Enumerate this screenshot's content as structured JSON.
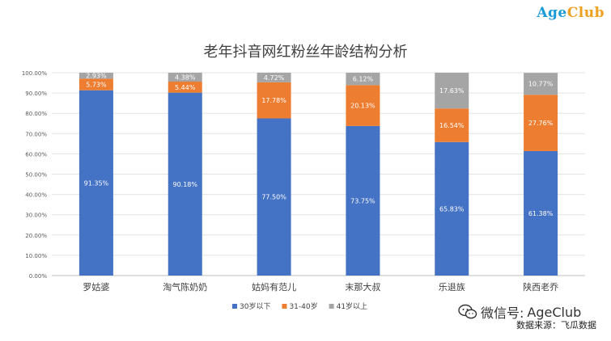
{
  "brand": {
    "part1": "Age",
    "part2": "Club"
  },
  "watermark": {
    "prefix": "微信号: ",
    "account": "AgeClub"
  },
  "source_note": "数据来源：飞瓜数据",
  "colors": {
    "series1": "#4472c4",
    "series2": "#ed7d31",
    "series3": "#a5a5a5"
  },
  "chart_data": {
    "type": "bar",
    "stacked": true,
    "title": "老年抖音网红粉丝年龄结构分析",
    "xlabel": "",
    "ylabel": "",
    "ylim": [
      0,
      100
    ],
    "yticks": [
      "0.00%",
      "10.00%",
      "20.00%",
      "30.00%",
      "40.00%",
      "50.00%",
      "60.00%",
      "70.00%",
      "80.00%",
      "90.00%",
      "100.00%"
    ],
    "categories": [
      "罗姑婆",
      "淘气陈奶奶",
      "姑妈有范儿",
      "末那大叔",
      "乐退族",
      "陕西老乔"
    ],
    "series": [
      {
        "name": "30岁以下",
        "values": [
          91.35,
          90.18,
          77.5,
          73.75,
          65.83,
          61.38
        ],
        "labels": [
          "91.35%",
          "90.18%",
          "77.50%",
          "73.75%",
          "65.83%",
          "61.38%"
        ]
      },
      {
        "name": "31-40岁",
        "values": [
          5.73,
          5.44,
          17.78,
          20.13,
          16.54,
          27.76
        ],
        "labels": [
          "5.73%",
          "5.44%",
          "17.78%",
          "20.13%",
          "16.54%",
          "27.76%"
        ]
      },
      {
        "name": "41岁以上",
        "values": [
          2.93,
          4.38,
          4.72,
          6.12,
          17.63,
          10.77
        ],
        "labels": [
          "2.93%",
          "4.38%",
          "4.72%",
          "6.12%",
          "17.63%",
          "10.77%"
        ]
      }
    ],
    "grid": true,
    "legend_position": "bottom"
  }
}
